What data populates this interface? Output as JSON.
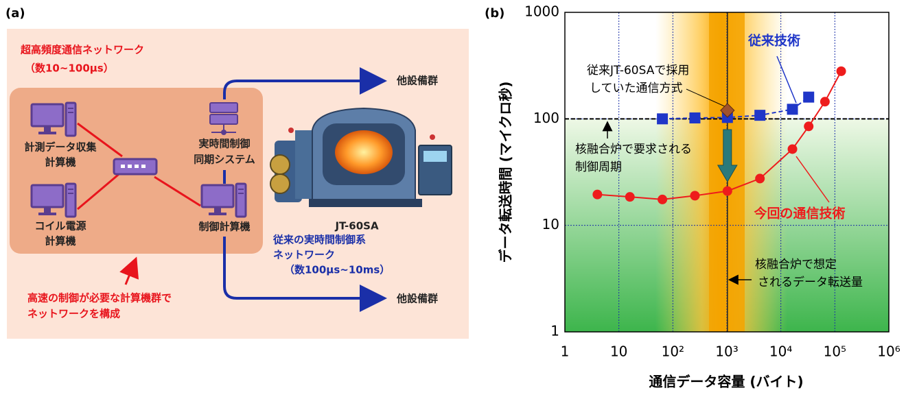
{
  "diagram": {
    "panel_label": "(a)",
    "network_title": [
      "超高頻度通信ネットワーク",
      "（数10~100μs）"
    ],
    "nodes": [
      {
        "label": [
          "計測データ収集",
          "計算機"
        ]
      },
      {
        "label": [
          "コイル電源",
          "計算機"
        ]
      },
      {
        "label": [
          "実時間制御",
          "同期システム"
        ]
      },
      {
        "label": [
          "制御計算機"
        ]
      }
    ],
    "device": "JT-60SA",
    "conventional_network": [
      "従来の実時間制御系",
      "ネットワーク",
      "（数100μs~10ms）"
    ],
    "outputs": [
      "他設備群",
      "他設備群"
    ],
    "note": [
      "高速の制御が必要な計算機群で",
      "ネットワークを構成"
    ]
  },
  "chart_data": {
    "type": "line",
    "panel_label": "(b)",
    "x_label": "通信データ容量 (バイト)",
    "y_label": "データ転送時間 (マイクロ秒)",
    "x_scale": "log",
    "y_scale": "log",
    "xlim": [
      1,
      1000000
    ],
    "ylim": [
      1,
      1000
    ],
    "xticks": [
      1,
      10,
      {
        "value": 100,
        "label": "10²"
      },
      {
        "value": 1000,
        "label": "10³"
      },
      {
        "value": 10000,
        "label": "10⁴"
      },
      {
        "value": 100000,
        "label": "10⁵"
      },
      {
        "value": 1000000,
        "label": "10⁶"
      }
    ],
    "yticks": [
      1,
      10,
      100,
      1000
    ],
    "grid": true,
    "series": [
      {
        "name": "従来技術",
        "color": "#1f36c8",
        "marker": "square",
        "line": "dashed",
        "x": [
          64,
          256,
          1024,
          4096,
          16384,
          32768
        ],
        "values": [
          100,
          102,
          103,
          108,
          123,
          160
        ]
      },
      {
        "name": "今回の通信技術",
        "color": "#ee1c1c",
        "marker": "circle",
        "line": "solid",
        "x": [
          4,
          16,
          64,
          256,
          1024,
          4096,
          16384,
          32768,
          65536,
          131072
        ],
        "values": [
          19.5,
          18.5,
          17.5,
          19,
          21,
          27.5,
          52,
          85,
          145,
          280
        ]
      }
    ],
    "annotations": [
      {
        "kind": "point",
        "text": [
          "従来JT-60SAで採用",
          "していた通信方式"
        ],
        "x": 1024,
        "y": 120,
        "color": "#a0522d"
      },
      {
        "kind": "hline",
        "text": [
          "核融合炉で要求される",
          "制御周期"
        ],
        "y": 100
      },
      {
        "kind": "vline",
        "text": [
          "核融合炉で想定",
          "されるデータ転送量"
        ],
        "x": 1024
      }
    ]
  }
}
